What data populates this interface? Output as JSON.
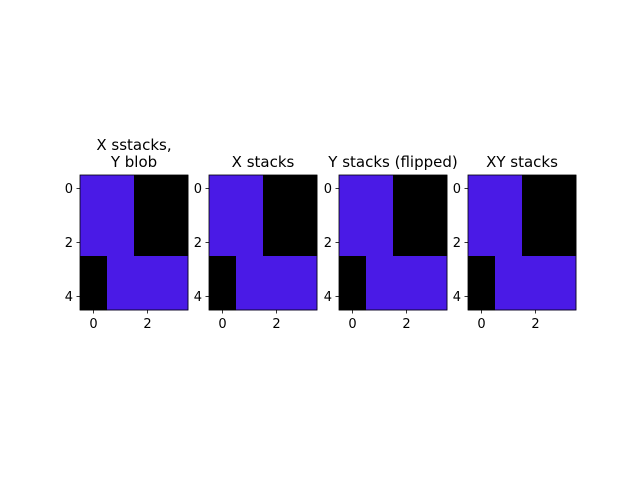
{
  "chart_data": [
    {
      "type": "heatmap",
      "title": "X sstacks,\nY blob",
      "x": [
        0,
        1,
        2,
        3
      ],
      "y": [
        0,
        1,
        2,
        3,
        4
      ],
      "values": [
        [
          1,
          1,
          0,
          0
        ],
        [
          1,
          1,
          0,
          0
        ],
        [
          1,
          1,
          0,
          0
        ],
        [
          0,
          1,
          1,
          1
        ],
        [
          0,
          1,
          1,
          1
        ]
      ],
      "xticks": [
        "0",
        "2"
      ],
      "yticks": [
        "0",
        "2",
        "4"
      ],
      "colors": {
        "0": "#000000",
        "1": "#4a1ae6"
      }
    },
    {
      "type": "heatmap",
      "title": "X stacks",
      "x": [
        0,
        1,
        2,
        3
      ],
      "y": [
        0,
        1,
        2,
        3,
        4
      ],
      "values": [
        [
          1,
          1,
          0,
          0
        ],
        [
          1,
          1,
          0,
          0
        ],
        [
          1,
          1,
          0,
          0
        ],
        [
          0,
          1,
          1,
          1
        ],
        [
          0,
          1,
          1,
          1
        ]
      ],
      "xticks": [
        "0",
        "2"
      ],
      "yticks": [
        "0",
        "2",
        "4"
      ],
      "colors": {
        "0": "#000000",
        "1": "#4a1ae6"
      }
    },
    {
      "type": "heatmap",
      "title": "Y stacks (flipped)",
      "x": [
        0,
        1,
        2,
        3
      ],
      "y": [
        0,
        1,
        2,
        3,
        4
      ],
      "values": [
        [
          1,
          1,
          0,
          0
        ],
        [
          1,
          1,
          0,
          0
        ],
        [
          1,
          1,
          0,
          0
        ],
        [
          0,
          1,
          1,
          1
        ],
        [
          0,
          1,
          1,
          1
        ]
      ],
      "xticks": [
        "0",
        "2"
      ],
      "yticks": [
        "0",
        "2",
        "4"
      ],
      "colors": {
        "0": "#000000",
        "1": "#4a1ae6"
      }
    },
    {
      "type": "heatmap",
      "title": "XY stacks",
      "x": [
        0,
        1,
        2,
        3
      ],
      "y": [
        0,
        1,
        2,
        3,
        4
      ],
      "values": [
        [
          1,
          1,
          0,
          0
        ],
        [
          1,
          1,
          0,
          0
        ],
        [
          1,
          1,
          0,
          0
        ],
        [
          0,
          1,
          1,
          1
        ],
        [
          0,
          1,
          1,
          1
        ]
      ],
      "xticks": [
        "0",
        "2"
      ],
      "yticks": [
        "0",
        "2",
        "4"
      ],
      "colors": {
        "0": "#000000",
        "1": "#4a1ae6"
      }
    }
  ]
}
